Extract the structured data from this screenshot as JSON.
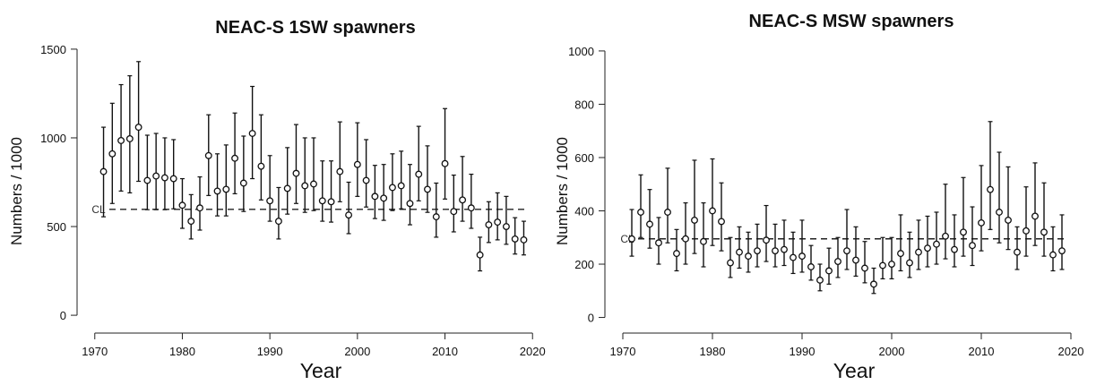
{
  "chart_data": [
    {
      "type": "scatter",
      "title": "NEAC-S 1SW spawners",
      "xlabel": "Year",
      "ylabel": "Numbers / 1000",
      "xlim": [
        1969,
        2021
      ],
      "ylim": [
        -50,
        1550
      ],
      "xticks": [
        1970,
        1980,
        1990,
        2000,
        2010,
        2020
      ],
      "yticks": [
        0,
        500,
        1000,
        1500
      ],
      "reference_line": {
        "label": "CL",
        "value": 597,
        "style": "dashed"
      },
      "series": [
        {
          "x": [
            1971,
            1972,
            1973,
            1974,
            1975,
            1976,
            1977,
            1978,
            1979,
            1980,
            1981,
            1982,
            1983,
            1984,
            1985,
            1986,
            1987,
            1988,
            1989,
            1990,
            1991,
            1992,
            1993,
            1994,
            1995,
            1996,
            1997,
            1998,
            1999,
            2000,
            2001,
            2002,
            2003,
            2004,
            2005,
            2006,
            2007,
            2008,
            2009,
            2010,
            2011,
            2012,
            2013,
            2014,
            2015,
            2016,
            2017,
            2018,
            2019
          ],
          "y": [
            810,
            910,
            985,
            995,
            1060,
            760,
            785,
            775,
            770,
            620,
            530,
            605,
            900,
            700,
            710,
            885,
            745,
            1025,
            840,
            645,
            530,
            715,
            800,
            730,
            740,
            645,
            640,
            810,
            565,
            850,
            760,
            670,
            660,
            720,
            730,
            630,
            795,
            710,
            555,
            855,
            585,
            650,
            605,
            340,
            510,
            525,
            500,
            430,
            425
          ],
          "lower": [
            555,
            630,
            700,
            690,
            755,
            595,
            595,
            595,
            600,
            490,
            430,
            480,
            675,
            560,
            560,
            685,
            585,
            770,
            650,
            530,
            430,
            570,
            630,
            580,
            590,
            530,
            525,
            640,
            460,
            670,
            610,
            545,
            535,
            590,
            600,
            510,
            645,
            580,
            440,
            655,
            470,
            530,
            490,
            250,
            410,
            425,
            400,
            345,
            340
          ],
          "upper": [
            1060,
            1195,
            1300,
            1350,
            1430,
            1015,
            1025,
            1000,
            990,
            770,
            680,
            780,
            1130,
            910,
            960,
            1140,
            1010,
            1290,
            1130,
            900,
            720,
            945,
            1075,
            1000,
            1000,
            870,
            870,
            1090,
            750,
            1085,
            990,
            845,
            850,
            910,
            925,
            850,
            1065,
            955,
            745,
            1165,
            790,
            895,
            795,
            440,
            640,
            690,
            670,
            550,
            530
          ]
        }
      ]
    },
    {
      "type": "scatter",
      "title": "NEAC-S MSW spawners",
      "xlabel": "Year",
      "ylabel": "Numbers / 1000",
      "xlim": [
        1969,
        2021
      ],
      "ylim": [
        -25,
        1040
      ],
      "xticks": [
        1970,
        1980,
        1990,
        2000,
        2010,
        2020
      ],
      "yticks": [
        0,
        200,
        400,
        600,
        800,
        1000
      ],
      "reference_line": {
        "label": "CL",
        "value": 295,
        "style": "dashed"
      },
      "series": [
        {
          "x": [
            1971,
            1972,
            1973,
            1974,
            1975,
            1976,
            1977,
            1978,
            1979,
            1980,
            1981,
            1982,
            1983,
            1984,
            1985,
            1986,
            1987,
            1988,
            1989,
            1990,
            1991,
            1992,
            1993,
            1994,
            1995,
            1996,
            1997,
            1998,
            1999,
            2000,
            2001,
            2002,
            2003,
            2004,
            2005,
            2006,
            2007,
            2008,
            2009,
            2010,
            2011,
            2012,
            2013,
            2014,
            2015,
            2016,
            2017,
            2018,
            2019
          ],
          "y": [
            295,
            395,
            350,
            280,
            395,
            240,
            295,
            365,
            285,
            400,
            360,
            205,
            245,
            230,
            250,
            290,
            250,
            255,
            225,
            230,
            190,
            140,
            175,
            210,
            250,
            215,
            185,
            125,
            195,
            200,
            240,
            205,
            245,
            260,
            275,
            305,
            255,
            320,
            270,
            355,
            480,
            395,
            365,
            245,
            325,
            380,
            320,
            235,
            250
          ],
          "lower": [
            230,
            300,
            260,
            200,
            280,
            175,
            200,
            240,
            190,
            270,
            250,
            150,
            185,
            170,
            190,
            210,
            190,
            195,
            165,
            170,
            140,
            100,
            125,
            150,
            180,
            155,
            130,
            90,
            145,
            145,
            175,
            150,
            180,
            190,
            200,
            220,
            190,
            230,
            195,
            250,
            330,
            280,
            255,
            180,
            230,
            270,
            230,
            175,
            180
          ],
          "upper": [
            405,
            535,
            480,
            375,
            560,
            330,
            430,
            590,
            430,
            595,
            505,
            300,
            340,
            320,
            350,
            420,
            350,
            365,
            320,
            365,
            270,
            200,
            260,
            300,
            405,
            340,
            285,
            185,
            300,
            300,
            385,
            320,
            365,
            380,
            395,
            500,
            385,
            525,
            415,
            570,
            735,
            620,
            565,
            340,
            490,
            580,
            505,
            340,
            385
          ]
        }
      ]
    }
  ]
}
